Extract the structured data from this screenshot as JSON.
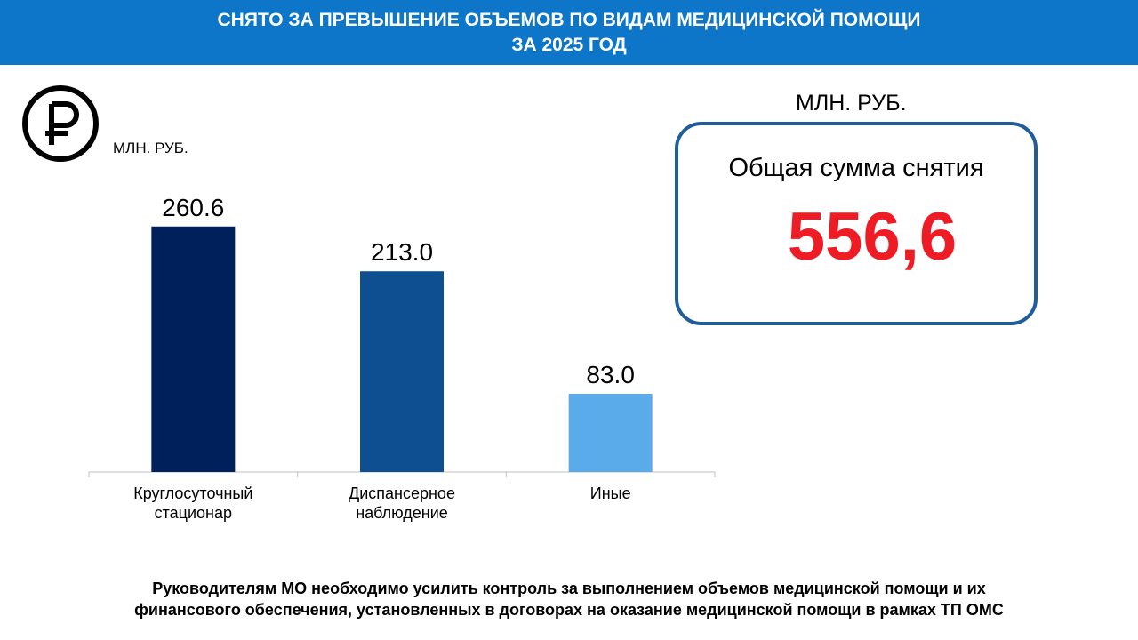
{
  "header": {
    "title_line1": "СНЯТО ЗА ПРЕВЫШЕНИЕ ОБЪЕМОВ ПО ВИДАМ МЕДИЦИНСКОЙ ПОМОЩИ",
    "title_line2": "ЗА 2025 ГОД",
    "background_color": "#0e76c8"
  },
  "logo": {
    "icon": "ruble-icon",
    "glyph": "₽"
  },
  "unit_left": "МЛН. РУБ.",
  "unit_right": "МЛН. РУБ.",
  "chart_data": {
    "type": "bar",
    "categories": [
      [
        "Круглосуточный",
        "стационар"
      ],
      [
        "Диспансерное",
        "наблюдение"
      ],
      [
        "Иные"
      ]
    ],
    "values": [
      260.6,
      213.0,
      83.0
    ],
    "data_labels": [
      "260.6",
      "213.0",
      "83.0"
    ],
    "colors": [
      "#00205b",
      "#0e4f92",
      "#5aabea"
    ],
    "ylabel": "МЛН. РУБ.",
    "ylim": [
      0,
      300
    ],
    "grid": false,
    "legend": "none"
  },
  "total": {
    "label": "Общая сумма снятия",
    "value": "556,6",
    "value_color": "#ee1c24",
    "border_color": "#1f5d9b"
  },
  "footer": {
    "line1": "Руководителям МО необходимо усилить контроль за выполнением объемов медицинской помощи и их",
    "line2": "финансового обеспечения, установленных в договорах на оказание медицинской помощи  в рамках ТП  ОМС"
  }
}
